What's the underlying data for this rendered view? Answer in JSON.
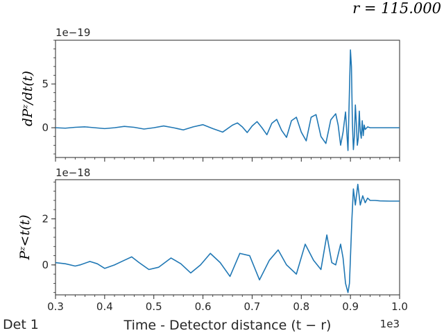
{
  "header": {
    "radius_label": "r = 115.000"
  },
  "corner_label": "Det 1",
  "colors": {
    "line": "#1f77b4",
    "axis": "#262626"
  },
  "chart_data": [
    {
      "type": "line",
      "ylabel": "dPᶻ/dt(t)",
      "offset_label": "1e−19",
      "xlim": [
        300,
        1000
      ],
      "ylim": [
        -3.4,
        10.0
      ],
      "yticks": [
        0,
        5
      ],
      "series": [
        {
          "x": [
            300,
            320,
            340,
            360,
            380,
            400,
            420,
            440,
            460,
            480,
            500,
            520,
            540,
            560,
            580,
            600,
            620,
            640,
            660,
            670,
            680,
            690,
            700,
            710,
            720,
            730,
            740,
            750,
            760,
            770,
            780,
            790,
            800,
            810,
            820,
            830,
            840,
            850,
            860,
            870,
            875,
            880,
            885,
            890,
            895,
            900,
            902,
            904,
            906,
            908,
            910,
            912,
            914,
            916,
            918,
            920,
            922,
            924,
            926,
            928,
            930,
            935,
            940,
            950,
            960,
            980,
            1000
          ],
          "y": [
            0.0,
            -0.05,
            0.05,
            0.1,
            0.0,
            -0.1,
            0.0,
            0.15,
            0.05,
            -0.15,
            0.0,
            0.2,
            0.0,
            -0.25,
            0.1,
            0.35,
            -0.1,
            -0.5,
            0.3,
            0.55,
            0.1,
            -0.55,
            0.2,
            0.7,
            0.0,
            -0.8,
            0.5,
            0.95,
            -0.3,
            -1.1,
            0.8,
            1.2,
            -0.5,
            -1.5,
            1.2,
            1.5,
            -1.0,
            -1.8,
            0.9,
            1.6,
            0.3,
            -2.0,
            -0.5,
            1.8,
            -2.6,
            8.9,
            7.0,
            0.5,
            -2.5,
            -1.0,
            2.6,
            0.5,
            -2.0,
            -1.2,
            1.9,
            -0.4,
            -1.2,
            0.8,
            -0.9,
            0.3,
            -0.2,
            0.1,
            0.0,
            0.0,
            0.0,
            0.0,
            0.0
          ]
        }
      ]
    },
    {
      "type": "line",
      "ylabel": "Pᶻ<t(t)",
      "offset_label": "1e−18",
      "xlabel": "Time - Detector distance (t − r)",
      "x_offset_label": "1e3",
      "xlim": [
        300,
        1000
      ],
      "ylim": [
        -1.3,
        3.7
      ],
      "yticks": [
        0,
        2
      ],
      "xticks": [
        0.3,
        0.4,
        0.5,
        0.6,
        0.7,
        0.8,
        0.9,
        1.0
      ],
      "series": [
        {
          "x": [
            300,
            320,
            340,
            350,
            370,
            385,
            400,
            420,
            440,
            455,
            470,
            490,
            510,
            535,
            555,
            575,
            595,
            615,
            635,
            655,
            675,
            695,
            715,
            735,
            753,
            770,
            790,
            808,
            825,
            840,
            852,
            862,
            870,
            880,
            885,
            890,
            895,
            898,
            903,
            906,
            910,
            915,
            920,
            925,
            930,
            935,
            940,
            950,
            960,
            980,
            1000
          ],
          "y": [
            0.1,
            0.05,
            -0.05,
            0.0,
            0.15,
            0.05,
            -0.15,
            0.0,
            0.2,
            0.35,
            0.1,
            -0.2,
            -0.1,
            0.3,
            0.05,
            -0.35,
            0.0,
            0.5,
            0.1,
            -0.5,
            0.5,
            0.4,
            -0.65,
            0.2,
            0.65,
            0.0,
            -0.4,
            0.9,
            0.2,
            -0.2,
            1.3,
            0.1,
            0.0,
            0.9,
            0.3,
            -0.8,
            -1.2,
            -0.8,
            2.0,
            3.3,
            2.6,
            3.5,
            2.6,
            3.0,
            2.7,
            2.9,
            2.8,
            2.8,
            2.78,
            2.77,
            2.77
          ]
        }
      ]
    }
  ]
}
